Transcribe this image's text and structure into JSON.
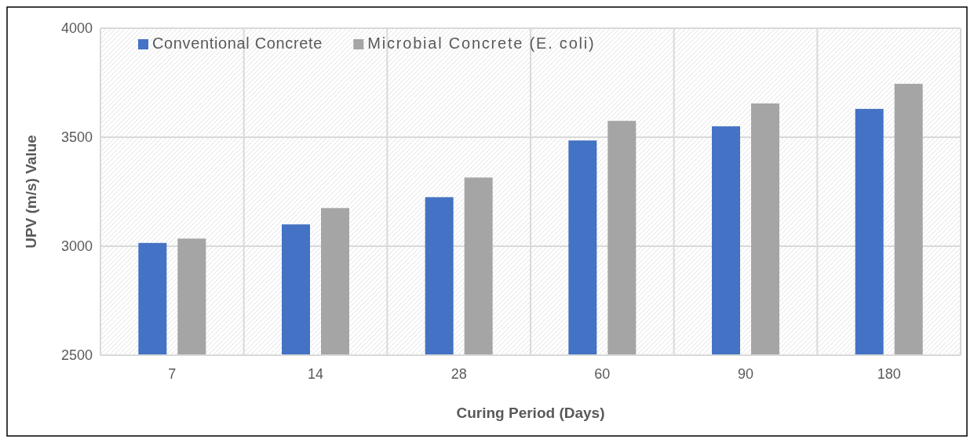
{
  "chart_data": {
    "type": "bar",
    "xlabel": "Curing Period (Days)",
    "ylabel": "UPV (m/s) Value",
    "categories": [
      "7",
      "14",
      "28",
      "60",
      "90",
      "180"
    ],
    "series": [
      {
        "name": "Conventional Concrete",
        "color": "#4472c4",
        "values": [
          3015,
          3100,
          3225,
          3485,
          3550,
          3630
        ]
      },
      {
        "name": "Microbial Concrete (E. coli)",
        "color": "#a5a5a5",
        "values": [
          3035,
          3175,
          3315,
          3575,
          3655,
          3745
        ]
      }
    ],
    "ylim": [
      2500,
      4000
    ],
    "yticks": [
      2500,
      3000,
      3500,
      4000
    ],
    "grid": true,
    "legend": "top left"
  }
}
